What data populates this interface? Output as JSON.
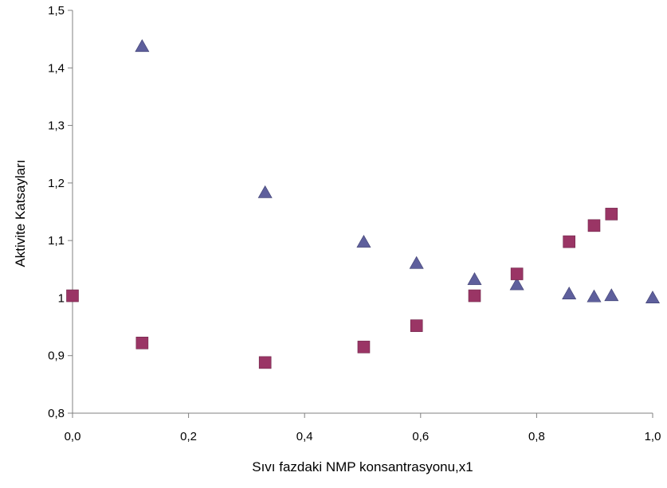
{
  "chart_data": {
    "type": "scatter",
    "title": "",
    "xlabel": "Sıvı fazdaki NMP konsantrasyonu,x1",
    "ylabel": "Aktivite Katsayları",
    "xlim": [
      0.0,
      1.0
    ],
    "ylim": [
      0.8,
      1.5
    ],
    "x_ticks": [
      "0,0",
      "0,2",
      "0,4",
      "0,6",
      "0,8",
      "1,0"
    ],
    "x_tick_values": [
      0.0,
      0.2,
      0.4,
      0.6,
      0.8,
      1.0
    ],
    "y_ticks": [
      "0,8",
      "0,9",
      "1",
      "1,1",
      "1,2",
      "1,3",
      "1,4",
      "1,5"
    ],
    "y_tick_values": [
      0.8,
      0.9,
      1.0,
      1.1,
      1.2,
      1.3,
      1.4,
      1.5
    ],
    "grid": false,
    "legend": "none",
    "series": [
      {
        "marker": "triangle",
        "color": "#5e5f9c",
        "x": [
          0.12,
          0.332,
          0.502,
          0.593,
          0.693,
          0.766,
          0.856,
          0.899,
          0.929,
          1.0
        ],
        "y": [
          1.438,
          1.184,
          1.098,
          1.061,
          1.033,
          1.024,
          1.008,
          1.003,
          1.005,
          1.001
        ]
      },
      {
        "marker": "square",
        "color": "#9a3565",
        "x": [
          0.0,
          0.12,
          0.332,
          0.502,
          0.593,
          0.693,
          0.766,
          0.856,
          0.899,
          0.929
        ],
        "y": [
          1.004,
          0.922,
          0.888,
          0.915,
          0.952,
          1.004,
          1.042,
          1.098,
          1.126,
          1.146
        ]
      }
    ]
  }
}
